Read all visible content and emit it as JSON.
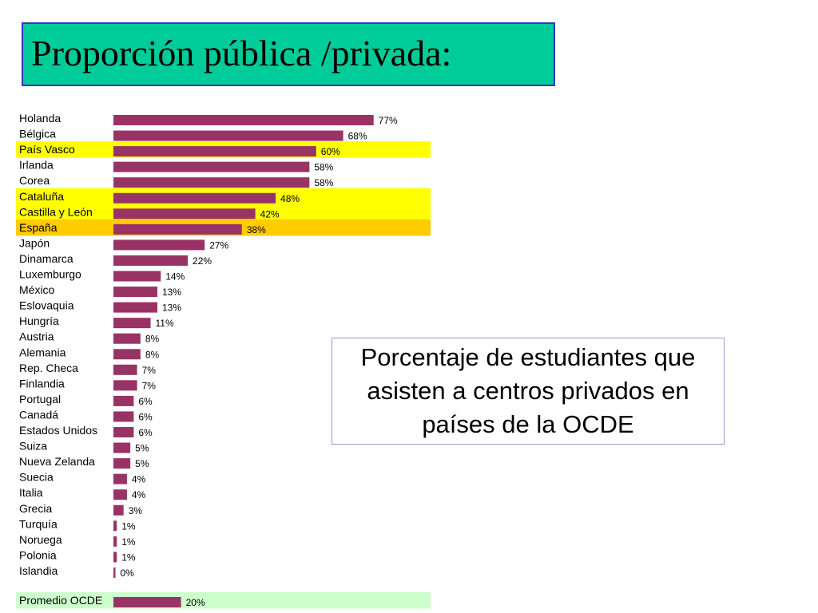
{
  "title": "Proporción pública /privada:",
  "note": "Porcentaje de estudiantes que asisten a centros privados en países de la OCDE",
  "colors": {
    "bar": "#993366",
    "highlight_yellow": "#ffff00",
    "highlight_orange": "#ffcc00",
    "highlight_green": "#ccffcc",
    "title_bg": "#00cc99",
    "title_border": "#3333cc"
  },
  "chart_data": {
    "type": "bar",
    "orientation": "horizontal",
    "xlim": [
      0,
      100
    ],
    "categories": [
      "Holanda",
      "Bélgica",
      "País Vasco",
      "Irlanda",
      "Corea",
      "Cataluña",
      "Castilla y León",
      "España",
      "Japón",
      "Dinamarca",
      "Luxemburgo",
      "México",
      "Eslovaquia",
      "Hungría",
      "Austria",
      "Alemania",
      "Rep. Checa",
      "Finlandia",
      "Portugal",
      "Canadá",
      "Estados Unidos",
      "Suiza",
      "Nueva Zelanda",
      "Suecia",
      "Italia",
      "Grecia",
      "Turquía",
      "Noruega",
      "Polonia",
      "Islandia",
      "Promedio OCDE"
    ],
    "values": [
      77,
      68,
      60,
      58,
      58,
      48,
      42,
      38,
      27,
      22,
      14,
      13,
      13,
      11,
      8,
      8,
      7,
      7,
      6,
      6,
      6,
      5,
      5,
      4,
      4,
      3,
      1,
      1,
      1,
      0,
      20
    ],
    "labels": [
      "77%",
      "68%",
      "60%",
      "58%",
      "58%",
      "48%",
      "42%",
      "38%",
      "27%",
      "22%",
      "14%",
      "13%",
      "13%",
      "11%",
      "8%",
      "8%",
      "7%",
      "7%",
      "6%",
      "6%",
      "6%",
      "5%",
      "5%",
      "4%",
      "4%",
      "3%",
      "1%",
      "1%",
      "1%",
      "0%",
      "20%"
    ],
    "highlight": [
      "",
      "",
      "yellow",
      "",
      "",
      "yellow",
      "yellow",
      "orange",
      "",
      "",
      "",
      "",
      "",
      "",
      "",
      "",
      "",
      "",
      "",
      "",
      "",
      "",
      "",
      "",
      "",
      "",
      "",
      "",
      "",
      "",
      "green"
    ]
  }
}
